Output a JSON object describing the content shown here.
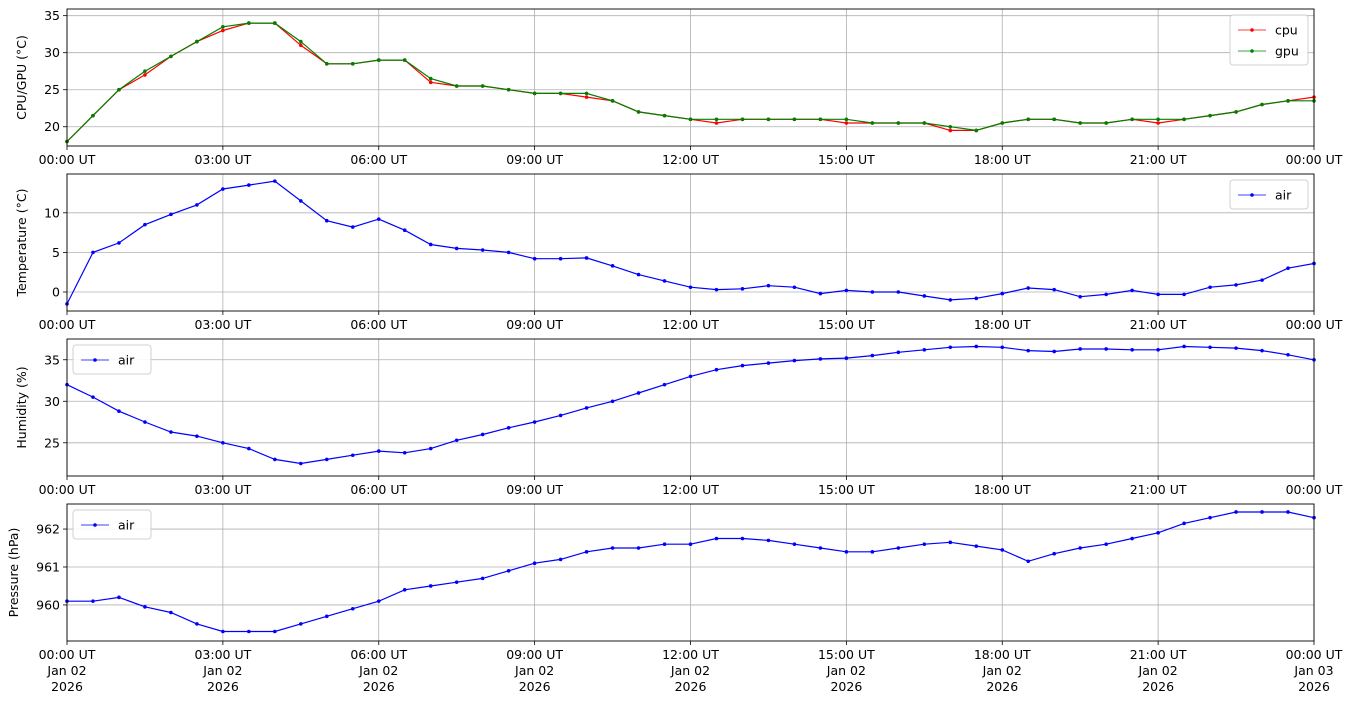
{
  "chart_data": [
    {
      "type": "line",
      "y_label": "CPU/GPU (°C)",
      "x": [
        0,
        0.5,
        1,
        1.5,
        2,
        2.5,
        3,
        3.5,
        4,
        4.5,
        5,
        5.5,
        6,
        6.5,
        7,
        7.5,
        8,
        8.5,
        9,
        9.5,
        10,
        10.5,
        11,
        11.5,
        12,
        12.5,
        13,
        13.5,
        14,
        14.5,
        15,
        15.5,
        16,
        16.5,
        17,
        17.5,
        18,
        18.5,
        19,
        19.5,
        20,
        20.5,
        21,
        21.5,
        22,
        22.5,
        23,
        23.5,
        24
      ],
      "xlim": [
        0,
        24
      ],
      "xticks": [
        {
          "value": 0,
          "label": "00:00 UT"
        },
        {
          "value": 3,
          "label": "03:00 UT"
        },
        {
          "value": 6,
          "label": "06:00 UT"
        },
        {
          "value": 9,
          "label": "09:00 UT"
        },
        {
          "value": 12,
          "label": "12:00 UT"
        },
        {
          "value": 15,
          "label": "15:00 UT"
        },
        {
          "value": 18,
          "label": "18:00 UT"
        },
        {
          "value": 21,
          "label": "21:00 UT"
        },
        {
          "value": 24,
          "label": "00:00 UT"
        }
      ],
      "ylim": [
        17.4,
        35.9
      ],
      "yticks": [
        20,
        25,
        30,
        35
      ],
      "grid": true,
      "legend": "upper right",
      "series": [
        {
          "name": "cpu",
          "color": "#ff0000",
          "values": [
            18,
            21.5,
            25,
            27,
            29.5,
            31.5,
            33,
            34,
            34,
            31,
            28.5,
            28.5,
            29,
            29,
            26,
            25.5,
            25.5,
            25,
            24.5,
            24.5,
            24,
            23.5,
            22,
            21.5,
            21,
            20.5,
            21,
            21,
            21,
            21,
            20.5,
            20.5,
            20.5,
            20.5,
            19.5,
            19.5,
            20.5,
            21,
            21,
            20.5,
            20.5,
            21,
            20.5,
            21,
            21.5,
            22,
            23,
            23.5,
            24
          ]
        },
        {
          "name": "gpu",
          "color": "#008000",
          "values": [
            18,
            21.5,
            25,
            27.5,
            29.5,
            31.5,
            33.5,
            34,
            34,
            31.5,
            28.5,
            28.5,
            29,
            29,
            26.5,
            25.5,
            25.5,
            25,
            24.5,
            24.5,
            24.5,
            23.5,
            22,
            21.5,
            21,
            21,
            21,
            21,
            21,
            21,
            21,
            20.5,
            20.5,
            20.5,
            20,
            19.5,
            20.5,
            21,
            21,
            20.5,
            20.5,
            21,
            21,
            21,
            21.5,
            22,
            23,
            23.5,
            23.5
          ]
        }
      ]
    },
    {
      "type": "line",
      "y_label": "Temperature (°C)",
      "x": [
        0,
        0.5,
        1,
        1.5,
        2,
        2.5,
        3,
        3.5,
        4,
        4.5,
        5,
        5.5,
        6,
        6.5,
        7,
        7.5,
        8,
        8.5,
        9,
        9.5,
        10,
        10.5,
        11,
        11.5,
        12,
        12.5,
        13,
        13.5,
        14,
        14.5,
        15,
        15.5,
        16,
        16.5,
        17,
        17.5,
        18,
        18.5,
        19,
        19.5,
        20,
        20.5,
        21,
        21.5,
        22,
        22.5,
        23,
        23.5,
        24
      ],
      "xlim": [
        0,
        24
      ],
      "xticks": [
        {
          "value": 0,
          "label": "00:00 UT"
        },
        {
          "value": 3,
          "label": "03:00 UT"
        },
        {
          "value": 6,
          "label": "06:00 UT"
        },
        {
          "value": 9,
          "label": "09:00 UT"
        },
        {
          "value": 12,
          "label": "12:00 UT"
        },
        {
          "value": 15,
          "label": "15:00 UT"
        },
        {
          "value": 18,
          "label": "18:00 UT"
        },
        {
          "value": 21,
          "label": "21:00 UT"
        },
        {
          "value": 24,
          "label": "00:00 UT"
        }
      ],
      "ylim": [
        -2.4,
        14.9
      ],
      "yticks": [
        0,
        5,
        10
      ],
      "grid": true,
      "legend": "upper right",
      "series": [
        {
          "name": "air",
          "color": "#0000ff",
          "values": [
            -1.5,
            5,
            6.2,
            8.5,
            9.8,
            11,
            13,
            13.5,
            14,
            11.5,
            9,
            8.2,
            9.2,
            7.8,
            6,
            5.5,
            5.3,
            5,
            4.2,
            4.2,
            4.3,
            3.3,
            2.2,
            1.4,
            0.6,
            0.3,
            0.4,
            0.8,
            0.6,
            -0.2,
            0.2,
            0,
            0,
            -0.5,
            -1,
            -0.8,
            -0.2,
            0.5,
            0.3,
            -0.6,
            -0.3,
            0.2,
            -0.3,
            -0.3,
            0.6,
            0.9,
            1.5,
            3,
            3.6
          ]
        }
      ]
    },
    {
      "type": "line",
      "y_label": "Humidity (%)",
      "x": [
        0,
        0.5,
        1,
        1.5,
        2,
        2.5,
        3,
        3.5,
        4,
        4.5,
        5,
        5.5,
        6,
        6.5,
        7,
        7.5,
        8,
        8.5,
        9,
        9.5,
        10,
        10.5,
        11,
        11.5,
        12,
        12.5,
        13,
        13.5,
        14,
        14.5,
        15,
        15.5,
        16,
        16.5,
        17,
        17.5,
        18,
        18.5,
        19,
        19.5,
        20,
        20.5,
        21,
        21.5,
        22,
        22.5,
        23,
        23.5,
        24
      ],
      "xlim": [
        0,
        24
      ],
      "xticks": [
        {
          "value": 0,
          "label": "00:00 UT"
        },
        {
          "value": 3,
          "label": "03:00 UT"
        },
        {
          "value": 6,
          "label": "06:00 UT"
        },
        {
          "value": 9,
          "label": "09:00 UT"
        },
        {
          "value": 12,
          "label": "12:00 UT"
        },
        {
          "value": 15,
          "label": "15:00 UT"
        },
        {
          "value": 18,
          "label": "18:00 UT"
        },
        {
          "value": 21,
          "label": "21:00 UT"
        },
        {
          "value": 24,
          "label": "00:00 UT"
        }
      ],
      "ylim": [
        21.0,
        37.5
      ],
      "yticks": [
        25,
        30,
        35
      ],
      "grid": true,
      "legend": "upper left",
      "series": [
        {
          "name": "air",
          "color": "#0000ff",
          "values": [
            32,
            30.5,
            28.8,
            27.5,
            26.3,
            25.8,
            25,
            24.3,
            23,
            22.5,
            23,
            23.5,
            24,
            23.8,
            24.3,
            25.3,
            26,
            26.8,
            27.5,
            28.3,
            29.2,
            30,
            31,
            32,
            33,
            33.8,
            34.3,
            34.6,
            34.9,
            35.1,
            35.2,
            35.5,
            35.9,
            36.2,
            36.5,
            36.6,
            36.5,
            36.1,
            36,
            36.3,
            36.3,
            36.2,
            36.2,
            36.6,
            36.5,
            36.4,
            36.1,
            35.6,
            35
          ]
        }
      ]
    },
    {
      "type": "line",
      "y_label": "Pressure (hPa)",
      "x": [
        0,
        0.5,
        1,
        1.5,
        2,
        2.5,
        3,
        3.5,
        4,
        4.5,
        5,
        5.5,
        6,
        6.5,
        7,
        7.5,
        8,
        8.5,
        9,
        9.5,
        10,
        10.5,
        11,
        11.5,
        12,
        12.5,
        13,
        13.5,
        14,
        14.5,
        15,
        15.5,
        16,
        16.5,
        17,
        17.5,
        18,
        18.5,
        19,
        19.5,
        20,
        20.5,
        21,
        21.5,
        22,
        22.5,
        23,
        23.5,
        24
      ],
      "xlim": [
        0,
        24
      ],
      "xticks": [
        {
          "value": 0,
          "label": "00:00 UT\nJan 02\n2026"
        },
        {
          "value": 3,
          "label": "03:00 UT\nJan 02\n2026"
        },
        {
          "value": 6,
          "label": "06:00 UT\nJan 02\n2026"
        },
        {
          "value": 9,
          "label": "09:00 UT\nJan 02\n2026"
        },
        {
          "value": 12,
          "label": "12:00 UT\nJan 02\n2026"
        },
        {
          "value": 15,
          "label": "15:00 UT\nJan 02\n2026"
        },
        {
          "value": 18,
          "label": "18:00 UT\nJan 02\n2026"
        },
        {
          "value": 21,
          "label": "21:00 UT\nJan 02\n2026"
        },
        {
          "value": 24,
          "label": "00:00 UT\nJan 03\n2026"
        }
      ],
      "ylim": [
        959.05,
        962.66
      ],
      "yticks": [
        960,
        961,
        962
      ],
      "grid": true,
      "legend": "upper left",
      "series": [
        {
          "name": "air",
          "color": "#0000ff",
          "values": [
            960.1,
            960.1,
            960.2,
            959.95,
            959.8,
            959.5,
            959.3,
            959.3,
            959.3,
            959.5,
            959.7,
            959.9,
            960.1,
            960.4,
            960.5,
            960.6,
            960.7,
            960.9,
            961.1,
            961.2,
            961.4,
            961.5,
            961.5,
            961.6,
            961.6,
            961.75,
            961.75,
            961.7,
            961.6,
            961.5,
            961.4,
            961.4,
            961.5,
            961.6,
            961.65,
            961.55,
            961.45,
            961.15,
            961.35,
            961.5,
            961.6,
            961.75,
            961.9,
            962.15,
            962.3,
            962.45,
            962.45,
            962.45,
            962.3
          ]
        }
      ]
    }
  ]
}
